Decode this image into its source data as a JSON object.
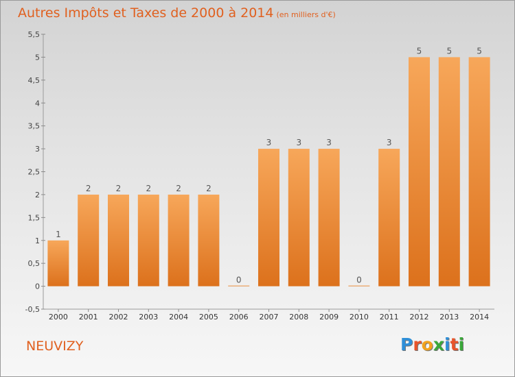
{
  "chart_data": {
    "type": "bar",
    "title": "Autres Impôts et Taxes de 2000 à 2014",
    "subtitle": "(en milliers d'€)",
    "xlabel": "",
    "ylabel": "",
    "categories": [
      "2000",
      "2001",
      "2002",
      "2003",
      "2004",
      "2005",
      "2006",
      "2007",
      "2008",
      "2009",
      "2010",
      "2011",
      "2012",
      "2013",
      "2014"
    ],
    "values": [
      1,
      2,
      2,
      2,
      2,
      2,
      0,
      3,
      3,
      3,
      0,
      3,
      5,
      5,
      5
    ],
    "data_labels": [
      "1",
      "2",
      "2",
      "2",
      "2",
      "2",
      "0",
      "3",
      "3",
      "3",
      "0",
      "3",
      "5",
      "5",
      "5"
    ],
    "ylim": [
      -0.5,
      5.5
    ],
    "yticks": [
      -0.5,
      0,
      0.5,
      1,
      1.5,
      2,
      2.5,
      3,
      3.5,
      4,
      4.5,
      5,
      5.5
    ],
    "ytick_labels": [
      "-0,5",
      "0",
      "0,5",
      "1",
      "1,5",
      "2",
      "2,5",
      "3",
      "3,5",
      "4",
      "4,5",
      "5",
      "5,5"
    ],
    "grid": false,
    "legend": "none",
    "bar_color": "#f08a2c"
  },
  "footer": {
    "place": "NEUVIZY",
    "brand_letters": [
      {
        "ch": "P",
        "color": "#2f8fd8"
      },
      {
        "ch": "r",
        "color": "#e8542a"
      },
      {
        "ch": "o",
        "color": "#f2a21d"
      },
      {
        "ch": "x",
        "color": "#3aa83a"
      },
      {
        "ch": "i",
        "color": "#2f8fd8"
      },
      {
        "ch": "t",
        "color": "#e8542a"
      },
      {
        "ch": "i",
        "color": "#3aa83a"
      }
    ]
  }
}
